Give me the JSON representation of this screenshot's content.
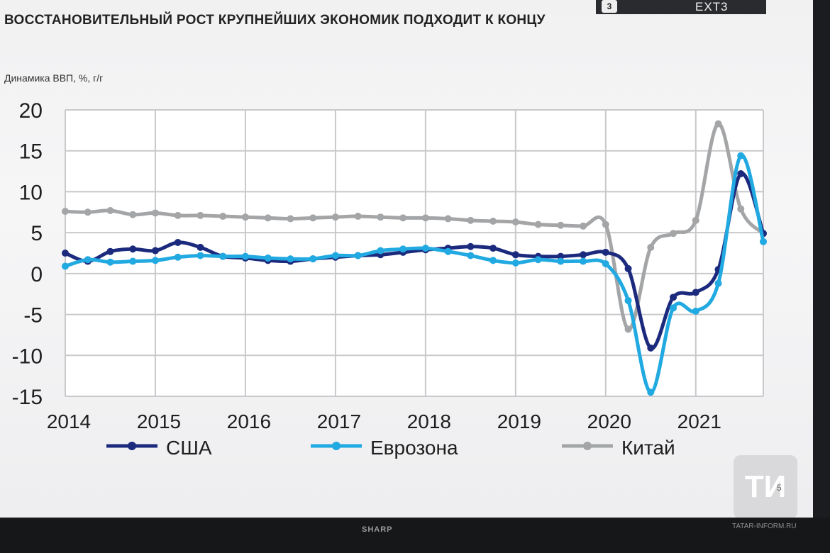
{
  "header": {
    "title": "ВОССТАНОВИТЕЛЬНЫЙ РОСТ КРУПНЕЙШИХ ЭКОНОМИК ПОДХОДИТ К КОНЦУ",
    "subtitle": "Динамика ВВП, %, г/г"
  },
  "osd": {
    "badge": "3",
    "label": "EXT3"
  },
  "footer": {
    "page": "5",
    "logo": "ТИ",
    "brand": "SHARP",
    "watermark": "TATAR-INFORM.RU"
  },
  "colors": {
    "usa": "#1c2a7e",
    "eurozone": "#21a9e1",
    "china": "#a4a5a7"
  },
  "chart_data": {
    "type": "line",
    "title": "ВОССТАНОВИТЕЛЬНЫЙ РОСТ КРУПНЕЙШИХ ЭКОНОМИК ПОДХОДИТ К КОНЦУ",
    "ylabel": "Динамика ВВП, %, г/г",
    "ylim": [
      -15,
      20
    ],
    "yticks": [
      "20",
      "15",
      "10",
      "5",
      "0",
      "-5",
      "-10",
      "-15"
    ],
    "xlim": [
      2014.0,
      2021.75
    ],
    "xticks": [
      "2014",
      "2015",
      "2016",
      "2017",
      "2018",
      "2019",
      "2020",
      "2021"
    ],
    "grid": true,
    "legend_position": "bottom",
    "series": [
      {
        "name": "США",
        "color": "#1c2a7e",
        "x": [
          2014.0,
          2014.25,
          2014.5,
          2014.75,
          2015.0,
          2015.25,
          2015.5,
          2015.75,
          2016.0,
          2016.25,
          2016.5,
          2016.75,
          2017.0,
          2017.25,
          2017.5,
          2017.75,
          2018.0,
          2018.25,
          2018.5,
          2018.75,
          2019.0,
          2019.25,
          2019.5,
          2019.75,
          2020.0,
          2020.25,
          2020.5,
          2020.75,
          2021.0,
          2021.25,
          2021.5,
          2021.75
        ],
        "y": [
          2.5,
          1.5,
          2.7,
          3.0,
          2.8,
          3.8,
          3.2,
          2.1,
          1.9,
          1.6,
          1.5,
          1.8,
          2.0,
          2.2,
          2.3,
          2.6,
          2.9,
          3.1,
          3.3,
          3.1,
          2.3,
          2.1,
          2.1,
          2.3,
          2.6,
          0.6,
          -9.1,
          -2.9,
          -2.3,
          0.5,
          12.2,
          4.9
        ]
      },
      {
        "name": "Еврозона",
        "color": "#21a9e1",
        "x": [
          2014.0,
          2014.25,
          2014.5,
          2014.75,
          2015.0,
          2015.25,
          2015.5,
          2015.75,
          2016.0,
          2016.25,
          2016.5,
          2016.75,
          2017.0,
          2017.25,
          2017.5,
          2017.75,
          2018.0,
          2018.25,
          2018.5,
          2018.75,
          2019.0,
          2019.25,
          2019.5,
          2019.75,
          2020.0,
          2020.25,
          2020.5,
          2020.75,
          2021.0,
          2021.25,
          2021.5,
          2021.75
        ],
        "y": [
          0.9,
          1.7,
          1.4,
          1.5,
          1.6,
          2.0,
          2.2,
          2.1,
          2.1,
          1.9,
          1.8,
          1.8,
          2.2,
          2.2,
          2.8,
          3.0,
          3.1,
          2.7,
          2.2,
          1.6,
          1.3,
          1.7,
          1.5,
          1.5,
          1.2,
          -3.3,
          -14.5,
          -4.2,
          -4.6,
          -1.2,
          14.4,
          3.9
        ]
      },
      {
        "name": "Китай",
        "color": "#a4a5a7",
        "x": [
          2014.0,
          2014.25,
          2014.5,
          2014.75,
          2015.0,
          2015.25,
          2015.5,
          2015.75,
          2016.0,
          2016.25,
          2016.5,
          2016.75,
          2017.0,
          2017.25,
          2017.5,
          2017.75,
          2018.0,
          2018.25,
          2018.5,
          2018.75,
          2019.0,
          2019.25,
          2019.5,
          2019.75,
          2020.0,
          2020.25,
          2020.5,
          2020.75,
          2021.0,
          2021.25,
          2021.5,
          2021.75
        ],
        "y": [
          7.6,
          7.5,
          7.7,
          7.2,
          7.4,
          7.1,
          7.1,
          7.0,
          6.9,
          6.8,
          6.7,
          6.8,
          6.9,
          7.0,
          6.9,
          6.8,
          6.8,
          6.7,
          6.5,
          6.4,
          6.3,
          6.0,
          5.9,
          5.8,
          6.0,
          -6.8,
          3.2,
          4.9,
          6.5,
          18.3,
          7.9,
          4.9
        ]
      }
    ]
  }
}
